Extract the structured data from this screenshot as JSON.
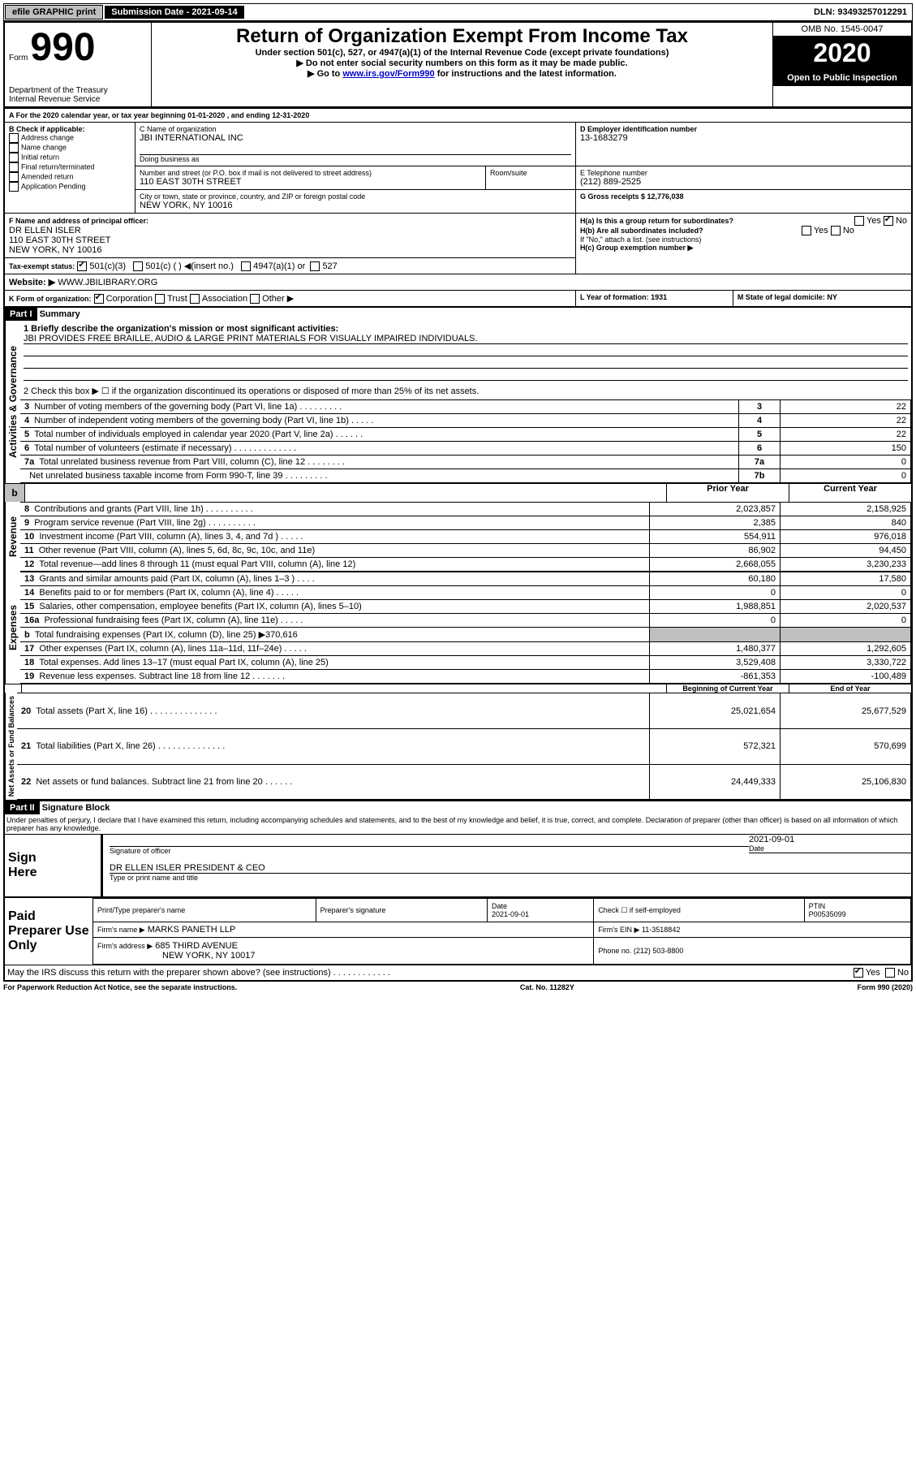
{
  "topbar": {
    "efile_label": "efile GRAPHIC print",
    "submission_label": "Submission Date - 2021-09-14",
    "dln": "DLN: 93493257012291"
  },
  "header": {
    "form_prefix": "Form",
    "form_number": "990",
    "dept": "Department of the Treasury\nInternal Revenue Service",
    "title": "Return of Organization Exempt From Income Tax",
    "subtitle": "Under section 501(c), 527, or 4947(a)(1) of the Internal Revenue Code (except private foundations)",
    "note1": "▶ Do not enter social security numbers on this form as it may be made public.",
    "note2_pre": "▶ Go to ",
    "note2_link": "www.irs.gov/Form990",
    "note2_post": " for instructions and the latest information.",
    "omb": "OMB No. 1545-0047",
    "year": "2020",
    "inspection": "Open to Public Inspection"
  },
  "section_a": {
    "line_a": "A For the 2020 calendar year, or tax year beginning 01-01-2020    , and ending 12-31-2020",
    "b_label": "B Check if applicable:",
    "b_opts": [
      "Address change",
      "Name change",
      "Initial return",
      "Final return/terminated",
      "Amended return",
      "Application Pending"
    ],
    "c_label": "C Name of organization",
    "c_value": "JBI INTERNATIONAL INC",
    "dba_label": "Doing business as",
    "street_label": "Number and street (or P.O. box if mail is not delivered to street address)",
    "room_label": "Room/suite",
    "street_value": "110 EAST 30TH STREET",
    "city_label": "City or town, state or province, country, and ZIP or foreign postal code",
    "city_value": "NEW YORK, NY  10016",
    "d_label": "D Employer identification number",
    "d_value": "13-1683279",
    "e_label": "E Telephone number",
    "e_value": "(212) 889-2525",
    "g_label": "G Gross receipts $ 12,776,038",
    "f_label": "F Name and address of principal officer:",
    "f_value": "DR ELLEN ISLER\n110 EAST 30TH STREET\nNEW YORK, NY  10016",
    "ha_label": "H(a)  Is this a group return for subordinates?",
    "hb_label": "H(b)  Are all subordinates included?",
    "h_note": "If \"No,\" attach a list. (see instructions)",
    "hc_label": "H(c)  Group exemption number ▶",
    "i_label": "Tax-exempt status:",
    "i_501c3": "501(c)(3)",
    "i_501c": "501(c) (  ) ◀(insert no.)",
    "i_4947": "4947(a)(1) or",
    "i_527": "527",
    "j_label": "Website: ▶",
    "j_value": "WWW.JBILIBRARY.ORG",
    "k_label": "K Form of organization:",
    "k_opts": [
      "Corporation",
      "Trust",
      "Association",
      "Other ▶"
    ],
    "l_label": "L Year of formation: 1931",
    "m_label": "M State of legal domicile: NY"
  },
  "part1": {
    "header": "Part I",
    "title": "Summary",
    "line1_label": "1  Briefly describe the organization's mission or most significant activities:",
    "line1_value": "JBI PROVIDES FREE BRAILLE, AUDIO & LARGE PRINT MATERIALS FOR VISUALLY IMPAIRED INDIVIDUALS.",
    "line2_label": "2   Check this box ▶ ☐  if the organization discontinued its operations or disposed of more than 25% of its net assets.",
    "gov_lines": [
      {
        "n": "3",
        "t": "Number of voting members of the governing body (Part VI, line 1a)   .    .    .    .    .    .    .    .    .",
        "r": "3",
        "v": "22"
      },
      {
        "n": "4",
        "t": "Number of independent voting members of the governing body (Part VI, line 1b)   .    .    .    .    .",
        "r": "4",
        "v": "22"
      },
      {
        "n": "5",
        "t": "Total number of individuals employed in calendar year 2020 (Part V, line 2a)   .    .    .    .    .    .",
        "r": "5",
        "v": "22"
      },
      {
        "n": "6",
        "t": "Total number of volunteers (estimate if necessary)   .    .    .    .    .    .    .    .    .    .    .    .    .",
        "r": "6",
        "v": "150"
      },
      {
        "n": "7a",
        "t": "Total unrelated business revenue from Part VIII, column (C), line 12   .    .    .    .    .    .    .    .",
        "r": "7a",
        "v": "0"
      },
      {
        "n": "",
        "t": "Net unrelated business taxable income from Form 990-T, line 39   .    .    .    .    .    .    .    .    .",
        "r": "7b",
        "v": "0"
      }
    ],
    "col_prior": "Prior Year",
    "col_current": "Current Year",
    "rev_lines": [
      {
        "n": "8",
        "t": "Contributions and grants (Part VIII, line 1h)   .    .    .    .    .    .    .    .    .    .",
        "p": "2,023,857",
        "c": "2,158,925"
      },
      {
        "n": "9",
        "t": "Program service revenue (Part VIII, line 2g)   .    .    .    .    .    .    .    .    .    .",
        "p": "2,385",
        "c": "840"
      },
      {
        "n": "10",
        "t": "Investment income (Part VIII, column (A), lines 3, 4, and 7d )   .    .    .    .    .",
        "p": "554,911",
        "c": "976,018"
      },
      {
        "n": "11",
        "t": "Other revenue (Part VIII, column (A), lines 5, 6d, 8c, 9c, 10c, and 11e)",
        "p": "86,902",
        "c": "94,450"
      },
      {
        "n": "12",
        "t": "Total revenue—add lines 8 through 11 (must equal Part VIII, column (A), line 12)",
        "p": "2,668,055",
        "c": "3,230,233"
      }
    ],
    "exp_lines": [
      {
        "n": "13",
        "t": "Grants and similar amounts paid (Part IX, column (A), lines 1–3 )   .    .    .    .",
        "p": "60,180",
        "c": "17,580"
      },
      {
        "n": "14",
        "t": "Benefits paid to or for members (Part IX, column (A), line 4)   .    .    .    .    .",
        "p": "0",
        "c": "0"
      },
      {
        "n": "15",
        "t": "Salaries, other compensation, employee benefits (Part IX, column (A), lines 5–10)",
        "p": "1,988,851",
        "c": "2,020,537"
      },
      {
        "n": "16a",
        "t": "Professional fundraising fees (Part IX, column (A), line 11e)   .    .    .    .    .",
        "p": "0",
        "c": "0"
      },
      {
        "n": "b",
        "t": "Total fundraising expenses (Part IX, column (D), line 25) ▶370,616",
        "p": "",
        "c": "",
        "shaded": true
      },
      {
        "n": "17",
        "t": "Other expenses (Part IX, column (A), lines 11a–11d, 11f–24e)   .    .    .    .    .",
        "p": "1,480,377",
        "c": "1,292,605"
      },
      {
        "n": "18",
        "t": "Total expenses. Add lines 13–17 (must equal Part IX, column (A), line 25)",
        "p": "3,529,408",
        "c": "3,330,722"
      },
      {
        "n": "19",
        "t": "Revenue less expenses. Subtract line 18 from line 12   .    .    .    .    .    .    .",
        "p": "-861,353",
        "c": "-100,489"
      }
    ],
    "col_begin": "Beginning of Current Year",
    "col_end": "End of Year",
    "net_lines": [
      {
        "n": "20",
        "t": "Total assets (Part X, line 16)   .    .    .    .    .    .    .    .    .    .    .    .    .    .",
        "p": "25,021,654",
        "c": "25,677,529"
      },
      {
        "n": "21",
        "t": "Total liabilities (Part X, line 26)   .    .    .    .    .    .    .    .    .    .    .    .    .    .",
        "p": "572,321",
        "c": "570,699"
      },
      {
        "n": "22",
        "t": "Net assets or fund balances. Subtract line 21 from line 20   .    .    .    .    .    .",
        "p": "24,449,333",
        "c": "25,106,830"
      }
    ],
    "vlabel_gov": "Activities & Governance",
    "vlabel_rev": "Revenue",
    "vlabel_exp": "Expenses",
    "vlabel_net": "Net Assets or Fund Balances"
  },
  "part2": {
    "header": "Part II",
    "title": "Signature Block",
    "declaration": "Under penalties of perjury, I declare that I have examined this return, including accompanying schedules and statements, and to the best of my knowledge and belief, it is true, correct, and complete. Declaration of preparer (other than officer) is based on all information of which preparer has any knowledge.",
    "sign_here": "Sign Here",
    "sig_officer": "Signature of officer",
    "sig_date": "2021-09-01",
    "sig_date_label": "Date",
    "officer_name": "DR ELLEN ISLER  PRESIDENT & CEO",
    "type_name_label": "Type or print name and title",
    "paid_label": "Paid Preparer Use Only",
    "prep_name_label": "Print/Type preparer's name",
    "prep_sig_label": "Preparer's signature",
    "prep_date_label": "Date",
    "prep_date": "2021-09-01",
    "self_emp_label": "Check ☐ if self-employed",
    "ptin_label": "PTIN",
    "ptin_value": "P00535099",
    "firm_name_label": "Firm's name    ▶",
    "firm_name": "MARKS PANETH LLP",
    "firm_ein_label": "Firm's EIN ▶ 11-3518842",
    "firm_addr_label": "Firm's address ▶",
    "firm_addr1": "685 THIRD AVENUE",
    "firm_addr2": "NEW YORK, NY  10017",
    "firm_phone_label": "Phone no. (212) 503-8800",
    "discuss_label": "May the IRS discuss this return with the preparer shown above? (see instructions)   .    .    .    .    .    .    .    .    .    .    .    .",
    "yes": "Yes",
    "no": "No"
  },
  "footer": {
    "paperwork": "For Paperwork Reduction Act Notice, see the separate instructions.",
    "cat": "Cat. No. 11282Y",
    "form": "Form 990 (2020)"
  }
}
